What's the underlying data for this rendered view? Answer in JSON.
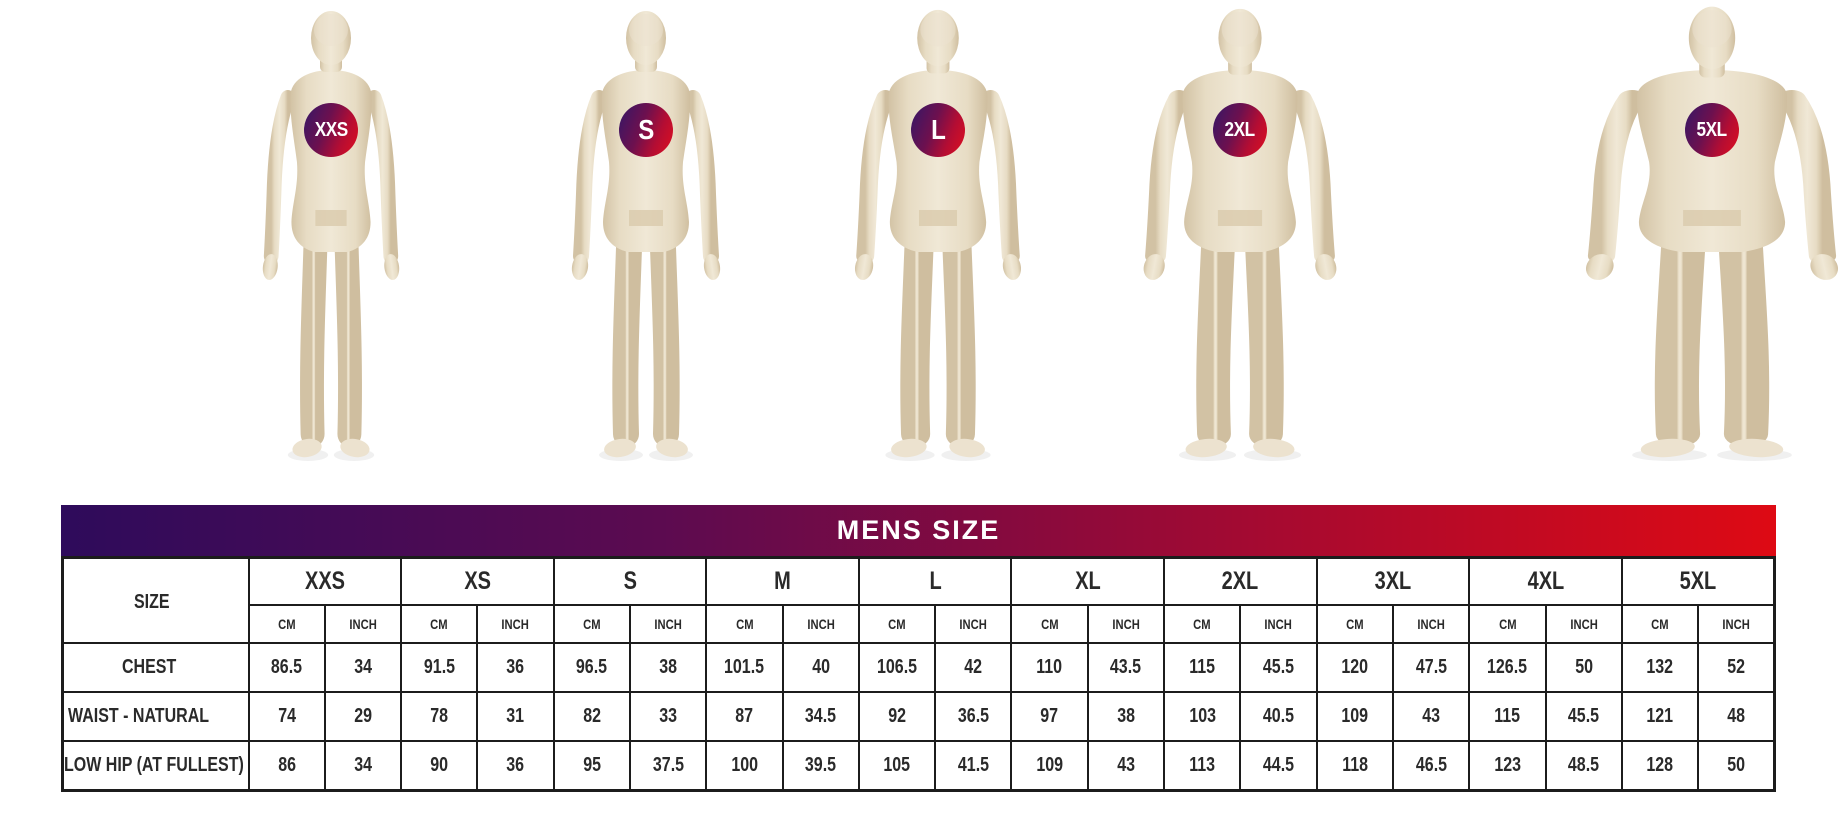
{
  "title": "MENS SIZE",
  "figures": [
    {
      "label": "XXS"
    },
    {
      "label": "S"
    },
    {
      "label": "L"
    },
    {
      "label": "2XL"
    },
    {
      "label": "5XL"
    }
  ],
  "colors": {
    "gradient_start": "#2E0B5B",
    "gradient_end": "#DE0A14",
    "badge_gradient_start": "#331768",
    "badge_gradient_end": "#D90F22",
    "mannequin_body": "#E9DFCA",
    "table_border": "#1C1C1C",
    "table_text": "#2A2A2A",
    "header_text": "#FFFFFF"
  },
  "chart_data": {
    "type": "table",
    "title": "MENS SIZE",
    "corner_label": "SIZE",
    "columns": [
      "XXS",
      "XS",
      "S",
      "M",
      "L",
      "XL",
      "2XL",
      "3XL",
      "4XL",
      "5XL"
    ],
    "units": [
      "CM",
      "INCH"
    ],
    "rows": [
      {
        "label": "CHEST",
        "cm": [
          86.5,
          91.5,
          96.5,
          101.5,
          106.5,
          110,
          115,
          120,
          126.5,
          132
        ],
        "inch": [
          34,
          36,
          38,
          40,
          42,
          43.5,
          45.5,
          47.5,
          50,
          52
        ]
      },
      {
        "label": "WAIST - NATURAL",
        "cm": [
          74,
          78,
          82,
          87,
          92,
          97,
          103,
          109,
          115,
          121
        ],
        "inch": [
          29,
          31,
          33,
          34.5,
          36.5,
          38,
          40.5,
          43,
          45.5,
          48
        ]
      },
      {
        "label": "LOW HIP (AT FULLEST)",
        "cm": [
          86,
          90,
          95,
          100,
          105,
          109,
          113,
          118,
          123,
          128
        ],
        "inch": [
          34,
          36,
          37.5,
          39.5,
          41.5,
          43,
          44.5,
          46.5,
          48.5,
          50
        ]
      }
    ]
  }
}
